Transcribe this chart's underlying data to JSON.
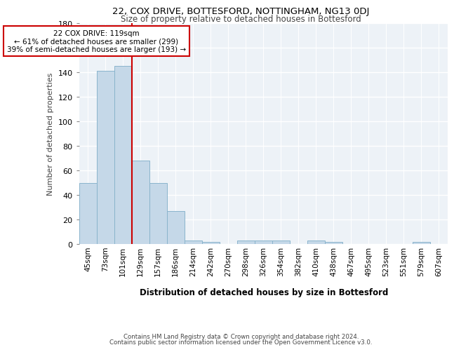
{
  "title": "22, COX DRIVE, BOTTESFORD, NOTTINGHAM, NG13 0DJ",
  "subtitle": "Size of property relative to detached houses in Bottesford",
  "xlabel": "Distribution of detached houses by size in Bottesford",
  "ylabel": "Number of detached properties",
  "bar_color": "#c5d8e8",
  "bar_edge_color": "#8ab4cc",
  "background_color": "#edf2f7",
  "grid_color": "#ffffff",
  "annotation_text": "22 COX DRIVE: 119sqm\n← 61% of detached houses are smaller (299)\n39% of semi-detached houses are larger (193) →",
  "vline_color": "#cc0000",
  "categories": [
    "45sqm",
    "73sqm",
    "101sqm",
    "129sqm",
    "157sqm",
    "186sqm",
    "214sqm",
    "242sqm",
    "270sqm",
    "298sqm",
    "326sqm",
    "354sqm",
    "382sqm",
    "410sqm",
    "438sqm",
    "467sqm",
    "495sqm",
    "523sqm",
    "551sqm",
    "579sqm",
    "607sqm"
  ],
  "values": [
    50,
    141,
    145,
    68,
    50,
    27,
    3,
    2,
    0,
    3,
    3,
    3,
    0,
    3,
    2,
    0,
    0,
    0,
    0,
    2,
    0
  ],
  "ylim": [
    0,
    180
  ],
  "yticks": [
    0,
    20,
    40,
    60,
    80,
    100,
    120,
    140,
    160,
    180
  ],
  "footer_line1": "Contains HM Land Registry data © Crown copyright and database right 2024.",
  "footer_line2": "Contains public sector information licensed under the Open Government Licence v3.0."
}
